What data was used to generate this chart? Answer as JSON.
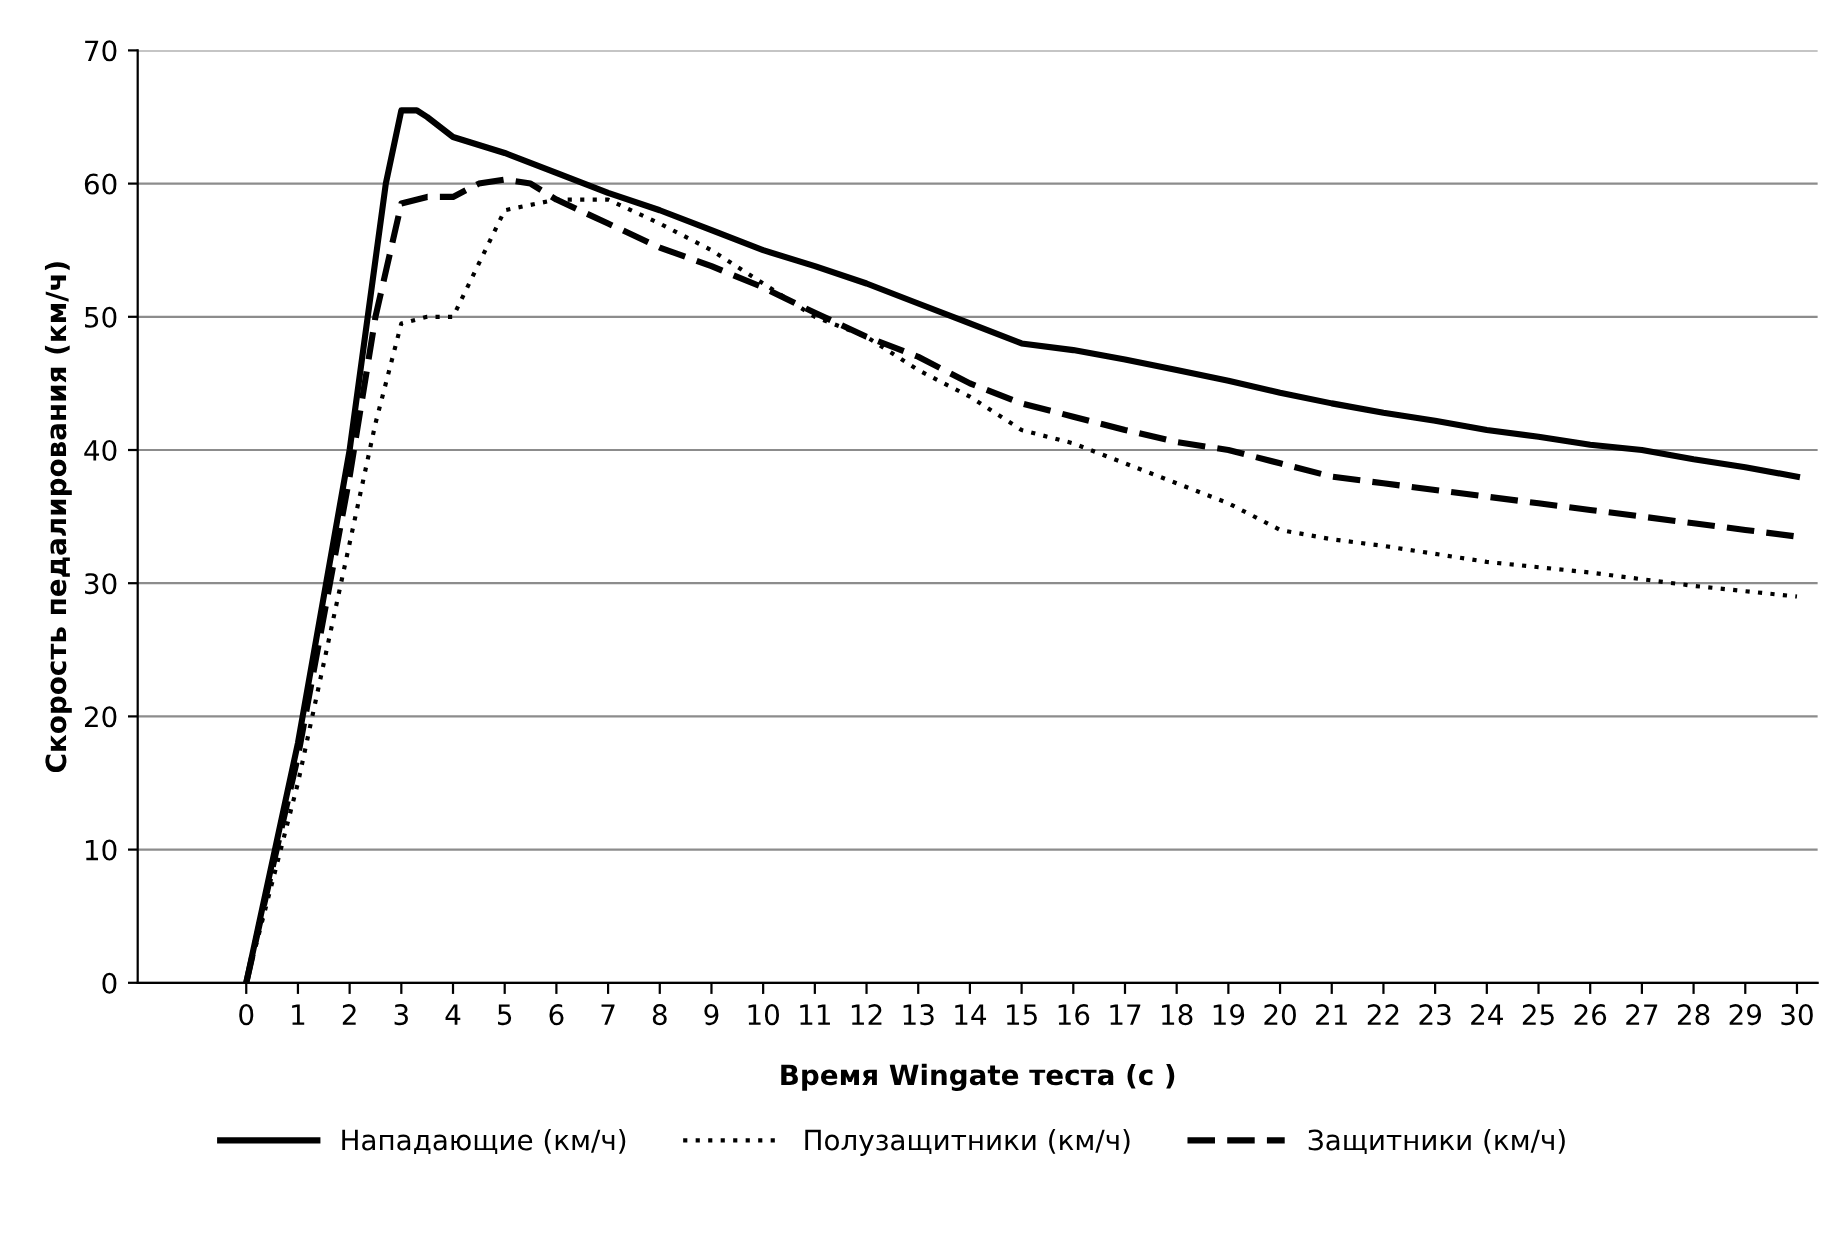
{
  "chart_data": {
    "type": "line",
    "xlabel": "Время Wingate теста (с )",
    "ylabel": "Скорость педалирования (км/ч)",
    "xlim": [
      -2.1,
      30.4
    ],
    "xticks": [
      0,
      1,
      2,
      3,
      4,
      5,
      6,
      7,
      8,
      9,
      10,
      11,
      12,
      13,
      14,
      15,
      16,
      17,
      18,
      19,
      20,
      21,
      22,
      23,
      24,
      25,
      26,
      27,
      28,
      29,
      30
    ],
    "ylim": [
      0,
      70
    ],
    "yticks": [
      0,
      10,
      20,
      30,
      40,
      50,
      60,
      70
    ],
    "grid": "y",
    "legend": "bottom",
    "marker": "none",
    "series": [
      {
        "name": "Нападающие (км/ч)",
        "color": "#000000",
        "line_style": "solid",
        "x": [
          0,
          1,
          2,
          2.7,
          3,
          3.3,
          3.5,
          4,
          5,
          6,
          7,
          8,
          9,
          10,
          11,
          12,
          13,
          14,
          15,
          16,
          17,
          18,
          19,
          20,
          21,
          22,
          23,
          24,
          25,
          26,
          27,
          28,
          29,
          30
        ],
        "values": [
          0,
          18,
          40,
          60,
          65.5,
          65.5,
          65,
          63.5,
          62.3,
          60.8,
          59.3,
          58,
          56.5,
          55,
          53.8,
          52.5,
          51,
          49.5,
          48,
          47.5,
          46.8,
          46,
          45.2,
          44.3,
          43.5,
          42.8,
          42.2,
          41.5,
          41,
          40.4,
          40,
          39.3,
          38.7,
          38
        ]
      },
      {
        "name": "Полузащитники (км/ч)",
        "color": "#000000",
        "line_style": "dotted",
        "x": [
          0,
          1,
          2,
          2.5,
          3,
          3.5,
          4,
          4.5,
          5,
          6,
          7,
          8,
          9,
          10,
          11,
          12,
          13,
          14,
          15,
          16,
          17,
          18,
          19,
          20,
          21,
          22,
          23,
          24,
          25,
          26,
          27,
          28,
          29,
          30
        ],
        "values": [
          0,
          15,
          33,
          42,
          49.5,
          50,
          50,
          54,
          58,
          58.8,
          58.8,
          57,
          55,
          52.5,
          50,
          48.5,
          46,
          44,
          41.5,
          40.5,
          39,
          37.5,
          36,
          34,
          33.3,
          32.8,
          32.2,
          31.6,
          31.2,
          30.8,
          30.3,
          29.8,
          29.4,
          29
        ]
      },
      {
        "name": "Защитники (км/ч)",
        "color": "#000000",
        "line_style": "dashed",
        "x": [
          0,
          1,
          2,
          2.5,
          3,
          3.5,
          4,
          4.5,
          5,
          5.5,
          6,
          7,
          8,
          9,
          10,
          11,
          12,
          13,
          14,
          15,
          16,
          17,
          18,
          19,
          20,
          21,
          22,
          23,
          24,
          25,
          26,
          27,
          28,
          29,
          30
        ],
        "values": [
          0,
          17,
          38,
          50,
          58.5,
          59,
          59,
          60,
          60.3,
          60,
          58.8,
          57,
          55.2,
          53.8,
          52.2,
          50.3,
          48.5,
          47,
          45,
          43.5,
          42.5,
          41.5,
          40.6,
          40,
          39,
          38,
          37.5,
          37,
          36.5,
          36,
          35.5,
          35,
          34.5,
          34,
          33.5
        ]
      }
    ]
  }
}
